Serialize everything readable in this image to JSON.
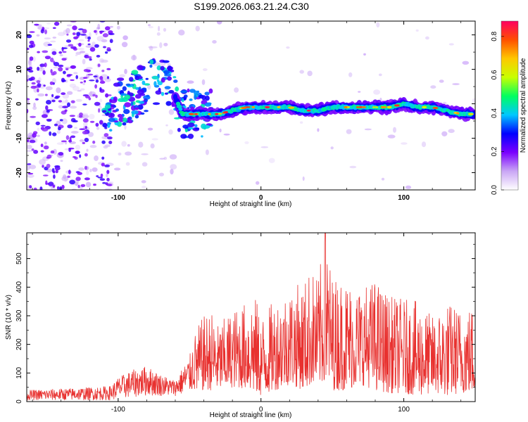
{
  "title": "S199.2026.063.21.24.C30",
  "chart_data": [
    {
      "type": "heatmap",
      "panel": "spectrogram",
      "xlabel": "Height of straight line (km)",
      "ylabel": "Frequency (Hz)",
      "xlim": [
        -164,
        150
      ],
      "ylim": [
        -25,
        24
      ],
      "xticks": [
        -100,
        0,
        100
      ],
      "yticks": [
        -20,
        -10,
        0,
        10,
        20
      ],
      "colorbar": {
        "label": "Normalized spectral amplitude",
        "range": [
          0,
          0.88
        ],
        "ticks": [
          0.0,
          0.2,
          0.4,
          0.6,
          0.8
        ],
        "colormap": [
          "#ffffff",
          "#c9a6f5",
          "#7a00ff",
          "#0000ff",
          "#00c8ff",
          "#00ff60",
          "#c8ff00",
          "#ffc800",
          "#ff5000",
          "#ff0060"
        ]
      },
      "ridge": {
        "x": [
          -110,
          -100,
          -90,
          -80,
          -70,
          -60,
          -55,
          -50,
          -40,
          -30,
          -20,
          -10,
          0,
          10,
          20,
          30,
          40,
          50,
          60,
          70,
          80,
          90,
          100,
          110,
          120,
          130,
          140,
          150
        ],
        "freq": [
          -4,
          0,
          2,
          5,
          8,
          2,
          -3,
          -3,
          -3,
          -3,
          -2,
          -1,
          -1,
          -1,
          -1,
          -2,
          -2,
          -1,
          -1,
          -1,
          -1,
          -1,
          0,
          -1,
          -1,
          -2,
          -3,
          -3
        ]
      }
    },
    {
      "type": "line",
      "panel": "snr",
      "xlabel": "Height of straight line (km)",
      "ylabel": "SNR (10 * v/v)",
      "xlim": [
        -164,
        150
      ],
      "ylim": [
        0,
        590
      ],
      "xticks": [
        -100,
        0,
        100
      ],
      "yticks": [
        0,
        100,
        200,
        300,
        400,
        500
      ],
      "color": "#e8312f",
      "envelope": {
        "x": [
          -164,
          -140,
          -120,
          -105,
          -100,
          -90,
          -80,
          -70,
          -60,
          -50,
          -45,
          -40,
          -35,
          -30,
          -20,
          -10,
          -5,
          0,
          10,
          20,
          30,
          35,
          40,
          45,
          50,
          60,
          70,
          80,
          90,
          100,
          110,
          120,
          130,
          140,
          150
        ],
        "max": [
          40,
          45,
          50,
          55,
          85,
          110,
          125,
          95,
          75,
          160,
          260,
          300,
          320,
          270,
          320,
          350,
          385,
          300,
          360,
          400,
          420,
          470,
          430,
          590,
          440,
          430,
          400,
          430,
          370,
          360,
          350,
          300,
          350,
          330,
          340
        ],
        "min": [
          5,
          5,
          5,
          5,
          10,
          15,
          20,
          20,
          20,
          30,
          30,
          40,
          40,
          40,
          50,
          45,
          30,
          20,
          40,
          60,
          40,
          60,
          50,
          70,
          40,
          40,
          60,
          40,
          30,
          30,
          20,
          30,
          20,
          30,
          30
        ]
      }
    }
  ]
}
